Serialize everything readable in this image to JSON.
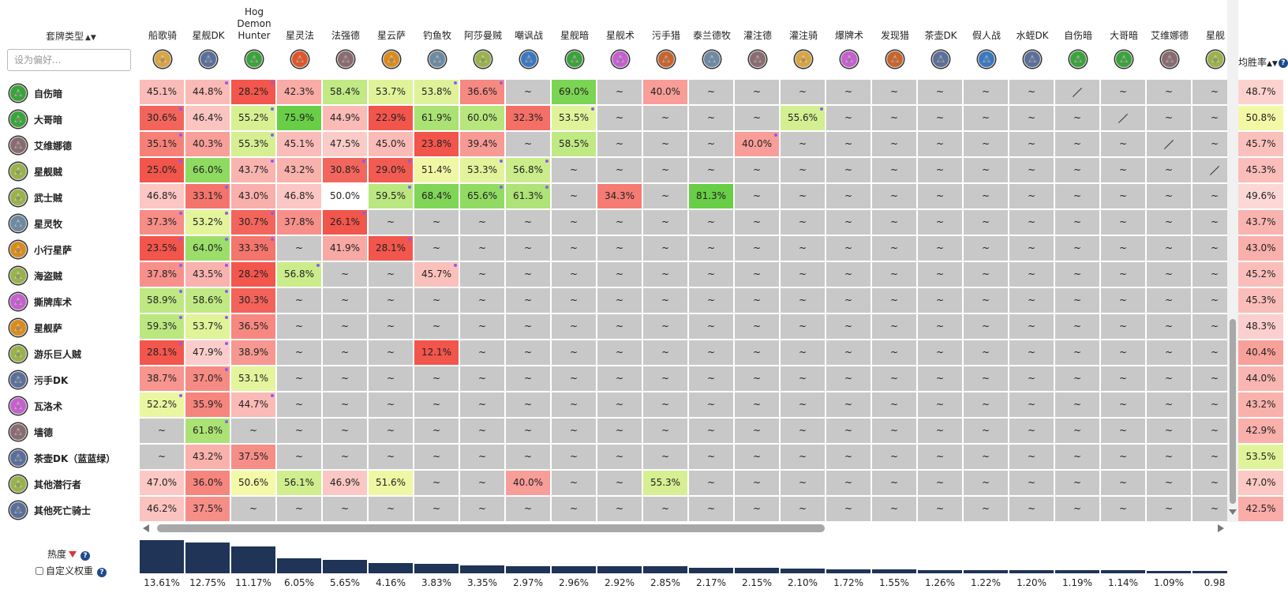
{
  "header": {
    "deck_type_label": "套牌类型",
    "sort_icon": "sort-up-down-icon",
    "search_placeholder": "设为偏好..."
  },
  "columns": [
    {
      "name": "船歌骑",
      "icon": "paladin-deck-icon",
      "color": "#d9a441"
    },
    {
      "name": "星舰DK",
      "icon": "deathknight-deck-icon",
      "color": "#5a6f9a"
    },
    {
      "name": "Hog Demon Hunter",
      "icon": "demonhunter-deck-icon",
      "color": "#3aa33a"
    },
    {
      "name": "星灵法",
      "icon": "mage-deck-icon",
      "color": "#e0552a"
    },
    {
      "name": "法强德",
      "icon": "druid-deck-icon",
      "color": "#8a6b70"
    },
    {
      "name": "星云萨",
      "icon": "shaman-deck-icon",
      "color": "#d98c1e"
    },
    {
      "name": "钓鱼牧",
      "icon": "priest-deck-icon",
      "color": "#6d8aa3"
    },
    {
      "name": "阿莎曼贼",
      "icon": "rogue-deck-icon",
      "color": "#9ab24a"
    },
    {
      "name": "嘲讽战",
      "icon": "warrior-deck-icon",
      "color": "#3b78c2"
    },
    {
      "name": "星舰暗",
      "icon": "demonhunter-deck-icon",
      "color": "#3aa33a"
    },
    {
      "name": "星舰术",
      "icon": "warlock-deck-icon",
      "color": "#c65fd0"
    },
    {
      "name": "污手猎",
      "icon": "hunter-deck-icon",
      "color": "#c9642c"
    },
    {
      "name": "泰兰德牧",
      "icon": "priest-deck-icon",
      "color": "#6d8aa3"
    },
    {
      "name": "灌注德",
      "icon": "druid-deck-icon",
      "color": "#8a6b70"
    },
    {
      "name": "灌注骑",
      "icon": "paladin-deck-icon",
      "color": "#d9a441"
    },
    {
      "name": "爆牌术",
      "icon": "warlock-deck-icon",
      "color": "#c65fd0"
    },
    {
      "name": "发现猎",
      "icon": "hunter-deck-icon",
      "color": "#c9642c"
    },
    {
      "name": "茶壶DK",
      "icon": "deathknight-deck-icon",
      "color": "#5a6f9a"
    },
    {
      "name": "假人战",
      "icon": "warrior-deck-icon",
      "color": "#3b78c2"
    },
    {
      "name": "水蛭DK",
      "icon": "deathknight-deck-icon",
      "color": "#5a6f9a"
    },
    {
      "name": "自伤暗",
      "icon": "demonhunter-deck-icon",
      "color": "#3aa33a"
    },
    {
      "name": "大哥暗",
      "icon": "demonhunter-deck-icon",
      "color": "#3aa33a"
    },
    {
      "name": "艾维娜德",
      "icon": "druid-deck-icon",
      "color": "#8a6b70"
    },
    {
      "name": "星舰",
      "icon": "rogue-deck-icon",
      "color": "#9ab24a"
    }
  ],
  "rows": [
    {
      "name": "自伤暗",
      "icon": "demonhunter-deck-icon",
      "color": "#3aa33a",
      "cells": [
        "45.1%",
        "44.8%",
        "28.2%",
        "42.3%",
        "58.4%",
        "53.7%",
        "53.8%",
        "36.6%",
        "~",
        "69.0%",
        "~",
        "40.0%",
        "~",
        "~",
        "~",
        "~",
        "~",
        "~",
        "~",
        "~",
        "/",
        "~",
        "~",
        "~"
      ]
    },
    {
      "name": "大哥暗",
      "icon": "demonhunter-deck-icon",
      "color": "#3aa33a",
      "cells": [
        "30.6%",
        "46.4%",
        "55.2%",
        "75.9%",
        "44.9%",
        "22.9%",
        "61.9%",
        "60.0%",
        "32.3%",
        "53.5%",
        "~",
        "~",
        "~",
        "~",
        "55.6%",
        "~",
        "~",
        "~",
        "~",
        "~",
        "~",
        "/",
        "~",
        "~"
      ]
    },
    {
      "name": "艾维娜德",
      "icon": "druid-deck-icon",
      "color": "#8a6b70",
      "cells": [
        "35.1%",
        "40.3%",
        "55.3%",
        "45.1%",
        "47.5%",
        "45.0%",
        "23.8%",
        "39.4%",
        "~",
        "58.5%",
        "~",
        "~",
        "~",
        "40.0%",
        "~",
        "~",
        "~",
        "~",
        "~",
        "~",
        "~",
        "~",
        "/",
        "~"
      ]
    },
    {
      "name": "星舰贼",
      "icon": "rogue-deck-icon",
      "color": "#9ab24a",
      "cells": [
        "25.0%",
        "66.0%",
        "43.7%",
        "43.2%",
        "30.8%",
        "29.0%",
        "51.4%",
        "53.3%",
        "56.8%",
        "~",
        "~",
        "~",
        "~",
        "~",
        "~",
        "~",
        "~",
        "~",
        "~",
        "~",
        "~",
        "~",
        "~",
        "/"
      ]
    },
    {
      "name": "武士贼",
      "icon": "rogue-deck-icon",
      "color": "#9ab24a",
      "cells": [
        "46.8%",
        "33.1%",
        "43.0%",
        "46.8%",
        "50.0%",
        "59.5%",
        "68.4%",
        "65.6%",
        "61.3%",
        "~",
        "34.3%",
        "~",
        "81.3%",
        "~",
        "~",
        "~",
        "~",
        "~",
        "~",
        "~",
        "~",
        "~",
        "~",
        "~"
      ]
    },
    {
      "name": "星灵牧",
      "icon": "priest-deck-icon",
      "color": "#6d8aa3",
      "cells": [
        "37.3%",
        "53.2%",
        "30.7%",
        "37.8%",
        "26.1%",
        "~",
        "~",
        "~",
        "~",
        "~",
        "~",
        "~",
        "~",
        "~",
        "~",
        "~",
        "~",
        "~",
        "~",
        "~",
        "~",
        "~",
        "~",
        "~"
      ]
    },
    {
      "name": "小行星萨",
      "icon": "shaman-deck-icon",
      "color": "#d98c1e",
      "cells": [
        "23.5%",
        "64.0%",
        "33.3%",
        "~",
        "41.9%",
        "28.1%",
        "~",
        "~",
        "~",
        "~",
        "~",
        "~",
        "~",
        "~",
        "~",
        "~",
        "~",
        "~",
        "~",
        "~",
        "~",
        "~",
        "~",
        "~"
      ]
    },
    {
      "name": "海盗贼",
      "icon": "rogue-deck-icon",
      "color": "#9ab24a",
      "cells": [
        "37.8%",
        "43.5%",
        "28.2%",
        "56.8%",
        "~",
        "~",
        "45.7%",
        "~",
        "~",
        "~",
        "~",
        "~",
        "~",
        "~",
        "~",
        "~",
        "~",
        "~",
        "~",
        "~",
        "~",
        "~",
        "~",
        "~"
      ]
    },
    {
      "name": "撕牌库术",
      "icon": "warlock-deck-icon",
      "color": "#c65fd0",
      "cells": [
        "58.9%",
        "58.6%",
        "30.3%",
        "~",
        "~",
        "~",
        "~",
        "~",
        "~",
        "~",
        "~",
        "~",
        "~",
        "~",
        "~",
        "~",
        "~",
        "~",
        "~",
        "~",
        "~",
        "~",
        "~",
        "~"
      ]
    },
    {
      "name": "星舰萨",
      "icon": "shaman-deck-icon",
      "color": "#d98c1e",
      "cells": [
        "59.3%",
        "53.7%",
        "36.5%",
        "~",
        "~",
        "~",
        "~",
        "~",
        "~",
        "~",
        "~",
        "~",
        "~",
        "~",
        "~",
        "~",
        "~",
        "~",
        "~",
        "~",
        "~",
        "~",
        "~",
        "~"
      ]
    },
    {
      "name": "游乐巨人贼",
      "icon": "rogue-deck-icon",
      "color": "#9ab24a",
      "cells": [
        "28.1%",
        "47.9%",
        "38.9%",
        "~",
        "~",
        "~",
        "12.1%",
        "~",
        "~",
        "~",
        "~",
        "~",
        "~",
        "~",
        "~",
        "~",
        "~",
        "~",
        "~",
        "~",
        "~",
        "~",
        "~",
        "~"
      ]
    },
    {
      "name": "污手DK",
      "icon": "deathknight-deck-icon",
      "color": "#5a6f9a",
      "cells": [
        "38.7%",
        "37.0%",
        "53.1%",
        "~",
        "~",
        "~",
        "~",
        "~",
        "~",
        "~",
        "~",
        "~",
        "~",
        "~",
        "~",
        "~",
        "~",
        "~",
        "~",
        "~",
        "~",
        "~",
        "~",
        "~"
      ]
    },
    {
      "name": "瓦洛术",
      "icon": "warlock-deck-icon",
      "color": "#c65fd0",
      "cells": [
        "52.2%",
        "35.9%",
        "44.7%",
        "~",
        "~",
        "~",
        "~",
        "~",
        "~",
        "~",
        "~",
        "~",
        "~",
        "~",
        "~",
        "~",
        "~",
        "~",
        "~",
        "~",
        "~",
        "~",
        "~",
        "~"
      ]
    },
    {
      "name": "墙德",
      "icon": "druid-deck-icon",
      "color": "#8a6b70",
      "cells": [
        "~",
        "61.8%",
        "~",
        "~",
        "~",
        "~",
        "~",
        "~",
        "~",
        "~",
        "~",
        "~",
        "~",
        "~",
        "~",
        "~",
        "~",
        "~",
        "~",
        "~",
        "~",
        "~",
        "~",
        "~"
      ]
    },
    {
      "name": "茶壶DK（蓝蓝绿）",
      "icon": "deathknight-deck-icon",
      "color": "#5a6f9a",
      "cells": [
        "~",
        "43.2%",
        "37.5%",
        "~",
        "~",
        "~",
        "~",
        "~",
        "~",
        "~",
        "~",
        "~",
        "~",
        "~",
        "~",
        "~",
        "~",
        "~",
        "~",
        "~",
        "~",
        "~",
        "~",
        "~"
      ]
    },
    {
      "name": "其他潜行者",
      "icon": "rogue-deck-icon",
      "color": "#9ab24a",
      "cells": [
        "47.0%",
        "36.0%",
        "50.6%",
        "56.1%",
        "46.9%",
        "51.6%",
        "~",
        "~",
        "40.0%",
        "~",
        "~",
        "55.3%",
        "~",
        "~",
        "~",
        "~",
        "~",
        "~",
        "~",
        "~",
        "~",
        "~",
        "~",
        "~"
      ]
    },
    {
      "name": "其他死亡骑士",
      "icon": "deathknight-deck-icon",
      "color": "#5a6f9a",
      "cells": [
        "46.2%",
        "37.5%",
        "~",
        "~",
        "~",
        "~",
        "~",
        "~",
        "~",
        "~",
        "~",
        "~",
        "~",
        "~",
        "~",
        "~",
        "~",
        "~",
        "~",
        "~",
        "~",
        "~",
        "~",
        "~"
      ]
    }
  ],
  "dot_cells": [
    [
      0,
      1
    ],
    [
      0,
      2
    ],
    [
      0,
      6
    ],
    [
      0,
      7
    ],
    [
      1,
      0
    ],
    [
      1,
      2
    ],
    [
      1,
      9
    ],
    [
      1,
      14
    ],
    [
      2,
      0
    ],
    [
      2,
      2
    ],
    [
      2,
      13
    ],
    [
      3,
      0
    ],
    [
      3,
      2
    ],
    [
      3,
      4
    ],
    [
      3,
      5
    ],
    [
      3,
      7
    ],
    [
      3,
      8
    ],
    [
      4,
      1
    ],
    [
      4,
      5
    ],
    [
      4,
      7
    ],
    [
      4,
      8
    ],
    [
      5,
      0
    ],
    [
      5,
      1
    ],
    [
      5,
      2
    ],
    [
      5,
      4
    ],
    [
      6,
      0
    ],
    [
      6,
      1
    ],
    [
      6,
      2
    ],
    [
      6,
      5
    ],
    [
      7,
      0
    ],
    [
      7,
      1
    ],
    [
      7,
      3
    ],
    [
      7,
      6
    ],
    [
      8,
      0
    ],
    [
      8,
      1
    ],
    [
      9,
      0
    ],
    [
      9,
      1
    ],
    [
      10,
      0
    ],
    [
      10,
      1
    ],
    [
      11,
      1
    ],
    [
      12,
      0
    ],
    [
      12,
      2
    ],
    [
      13,
      1
    ]
  ],
  "winrate": {
    "label": "均胜率",
    "help": "?",
    "values": [
      "48.7%",
      "50.8%",
      "45.7%",
      "45.3%",
      "49.6%",
      "43.7%",
      "43.0%",
      "45.2%",
      "45.3%",
      "48.3%",
      "40.4%",
      "44.0%",
      "43.2%",
      "42.9%",
      "53.5%",
      "47.0%",
      "42.5%"
    ]
  },
  "popularity": {
    "label": "热度",
    "help": "?",
    "custom_weight_label": "自定义权重",
    "values": [
      "13.61%",
      "12.75%",
      "11.17%",
      "6.05%",
      "5.65%",
      "4.16%",
      "3.83%",
      "3.35%",
      "2.97%",
      "2.96%",
      "2.92%",
      "2.85%",
      "2.17%",
      "2.15%",
      "2.10%",
      "1.72%",
      "1.55%",
      "1.26%",
      "1.22%",
      "1.20%",
      "1.19%",
      "1.14%",
      "1.09%",
      "0.98"
    ],
    "numbers": [
      13.61,
      12.75,
      11.17,
      6.05,
      5.65,
      4.16,
      3.83,
      3.35,
      2.97,
      2.96,
      2.92,
      2.85,
      2.17,
      2.15,
      2.1,
      1.72,
      1.55,
      1.26,
      1.22,
      1.2,
      1.19,
      1.14,
      1.09,
      0.98
    ]
  },
  "colors": {
    "empty_cell": "#c8c8c8",
    "dot": "#8a5cf5",
    "bar": "#1f3456",
    "help_icon": "#1e4a8a",
    "sort_triangle": "#d9363e"
  }
}
